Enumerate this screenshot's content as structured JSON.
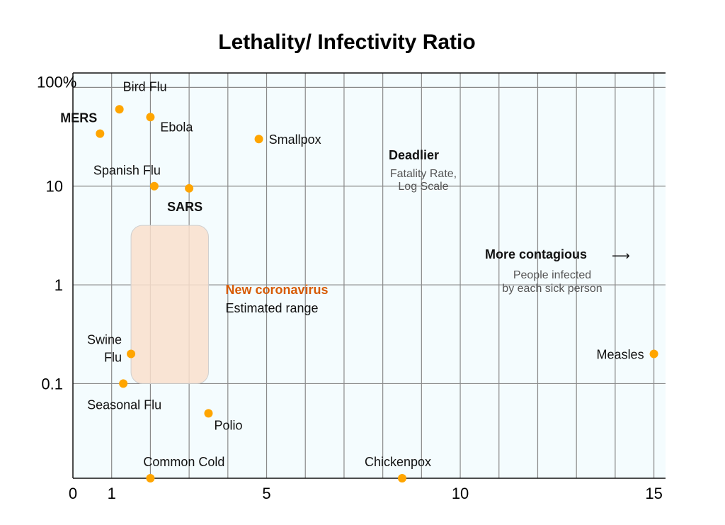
{
  "chart_data": {
    "type": "scatter",
    "title": "Lethality/ Infectivity Ratio",
    "xlabel": "",
    "ylabel": "",
    "x_scale": "linear",
    "y_scale": "log",
    "xlim": [
      0,
      15.3
    ],
    "ylim": [
      0.011,
      140
    ],
    "x_ticks": [
      0,
      1,
      5,
      10,
      15
    ],
    "y_ticks": [
      {
        "value": 100,
        "label": "100%"
      },
      {
        "value": 10,
        "label": "10"
      },
      {
        "value": 1,
        "label": "1"
      },
      {
        "value": 0.1,
        "label": "0.1"
      }
    ],
    "x_grid": [
      1,
      2,
      3,
      4,
      5,
      6,
      7,
      8,
      9,
      10,
      11,
      12,
      13,
      14,
      15
    ],
    "y_grid": [
      100,
      10,
      1,
      0.1
    ],
    "grid": true,
    "point_color": "#ffa500",
    "plot_background": "#f4fcfe",
    "points": [
      {
        "name": "Bird Flu",
        "x": 1.2,
        "y": 60
      },
      {
        "name": "MERS",
        "x": 0.7,
        "y": 34
      },
      {
        "name": "Ebola",
        "x": 2.0,
        "y": 50
      },
      {
        "name": "Smallpox",
        "x": 4.8,
        "y": 30
      },
      {
        "name": "Spanish Flu",
        "x": 2.1,
        "y": 10
      },
      {
        "name": "SARS",
        "x": 3.0,
        "y": 9.5
      },
      {
        "name": "Swine Flu",
        "x": 1.5,
        "y": 0.2
      },
      {
        "name": "Seasonal Flu",
        "x": 1.3,
        "y": 0.1
      },
      {
        "name": "Polio",
        "x": 3.5,
        "y": 0.05
      },
      {
        "name": "Common Cold",
        "x": 2.0,
        "y": 0.011
      },
      {
        "name": "Chickenpox",
        "x": 8.5,
        "y": 0.011
      },
      {
        "name": "Measles",
        "x": 15.0,
        "y": 0.2
      }
    ],
    "range_box": {
      "x": [
        1.5,
        3.5
      ],
      "y": [
        0.1,
        4.0
      ],
      "color": "#f9dfcc",
      "label": "New coronavirus",
      "label_color": "#d75b05",
      "sublabel": "Estimated range"
    },
    "annotations": {
      "deadlier": "Deadlier",
      "fatality_line1": "Fatality Rate,",
      "fatality_line2": "Log Scale",
      "contagious": "More contagious",
      "contagious_arrow": "⟶",
      "people_line1": "People infected",
      "people_line2": "by each sick person"
    }
  }
}
